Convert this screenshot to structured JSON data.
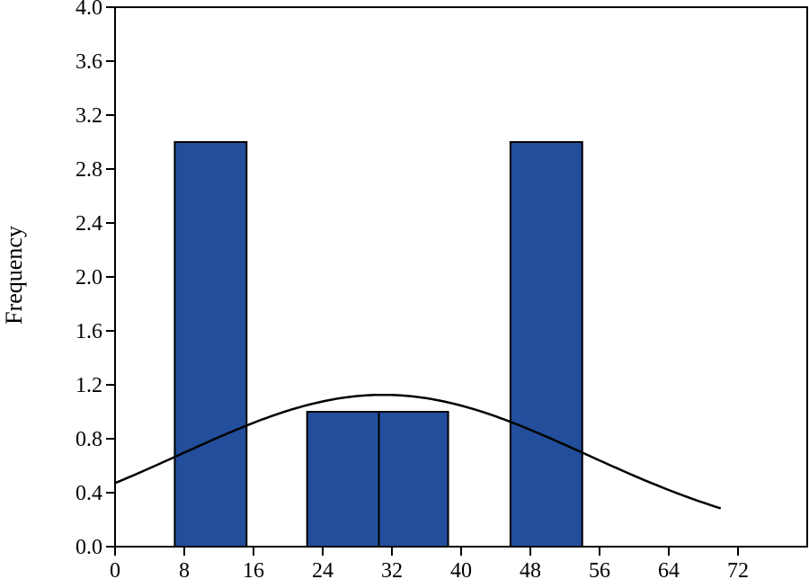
{
  "chart_data": {
    "type": "bar",
    "subtype": "histogram",
    "title": "",
    "xlabel": "",
    "ylabel": "Frequency",
    "xlim": [
      0,
      80
    ],
    "ylim": [
      0,
      4.0
    ],
    "x_ticks": [
      0,
      8,
      16,
      24,
      32,
      40,
      48,
      56,
      64,
      72
    ],
    "x_tick_labels": [
      "0",
      "8",
      "16",
      "24",
      "32",
      "40",
      "48",
      "56",
      "64",
      "72"
    ],
    "y_ticks": [
      0.0,
      0.4,
      0.8,
      1.2,
      1.6,
      2.0,
      2.4,
      2.8,
      3.2,
      3.6,
      4.0
    ],
    "y_tick_labels": [
      "0.0",
      "0.4",
      "0.8",
      "1.2",
      "1.6",
      "2.0",
      "2.4",
      "2.8",
      "3.2",
      "3.6",
      "4.0"
    ],
    "bins": [
      {
        "x0": 6.9,
        "x1": 15.2,
        "count": 3
      },
      {
        "x0": 22.2,
        "x1": 30.5,
        "count": 1
      },
      {
        "x0": 30.5,
        "x1": 38.5,
        "count": 1
      },
      {
        "x0": 45.7,
        "x1": 54.0,
        "count": 3
      }
    ],
    "normal_curve": {
      "x_range": [
        0,
        70
      ],
      "mean": 31,
      "sd": 23.5,
      "scale": 66.3
    },
    "grid": false,
    "legend": "none",
    "colors": {
      "bar_fill": "#234e9c",
      "bar_stroke": "#000000",
      "curve": "#000000"
    }
  }
}
